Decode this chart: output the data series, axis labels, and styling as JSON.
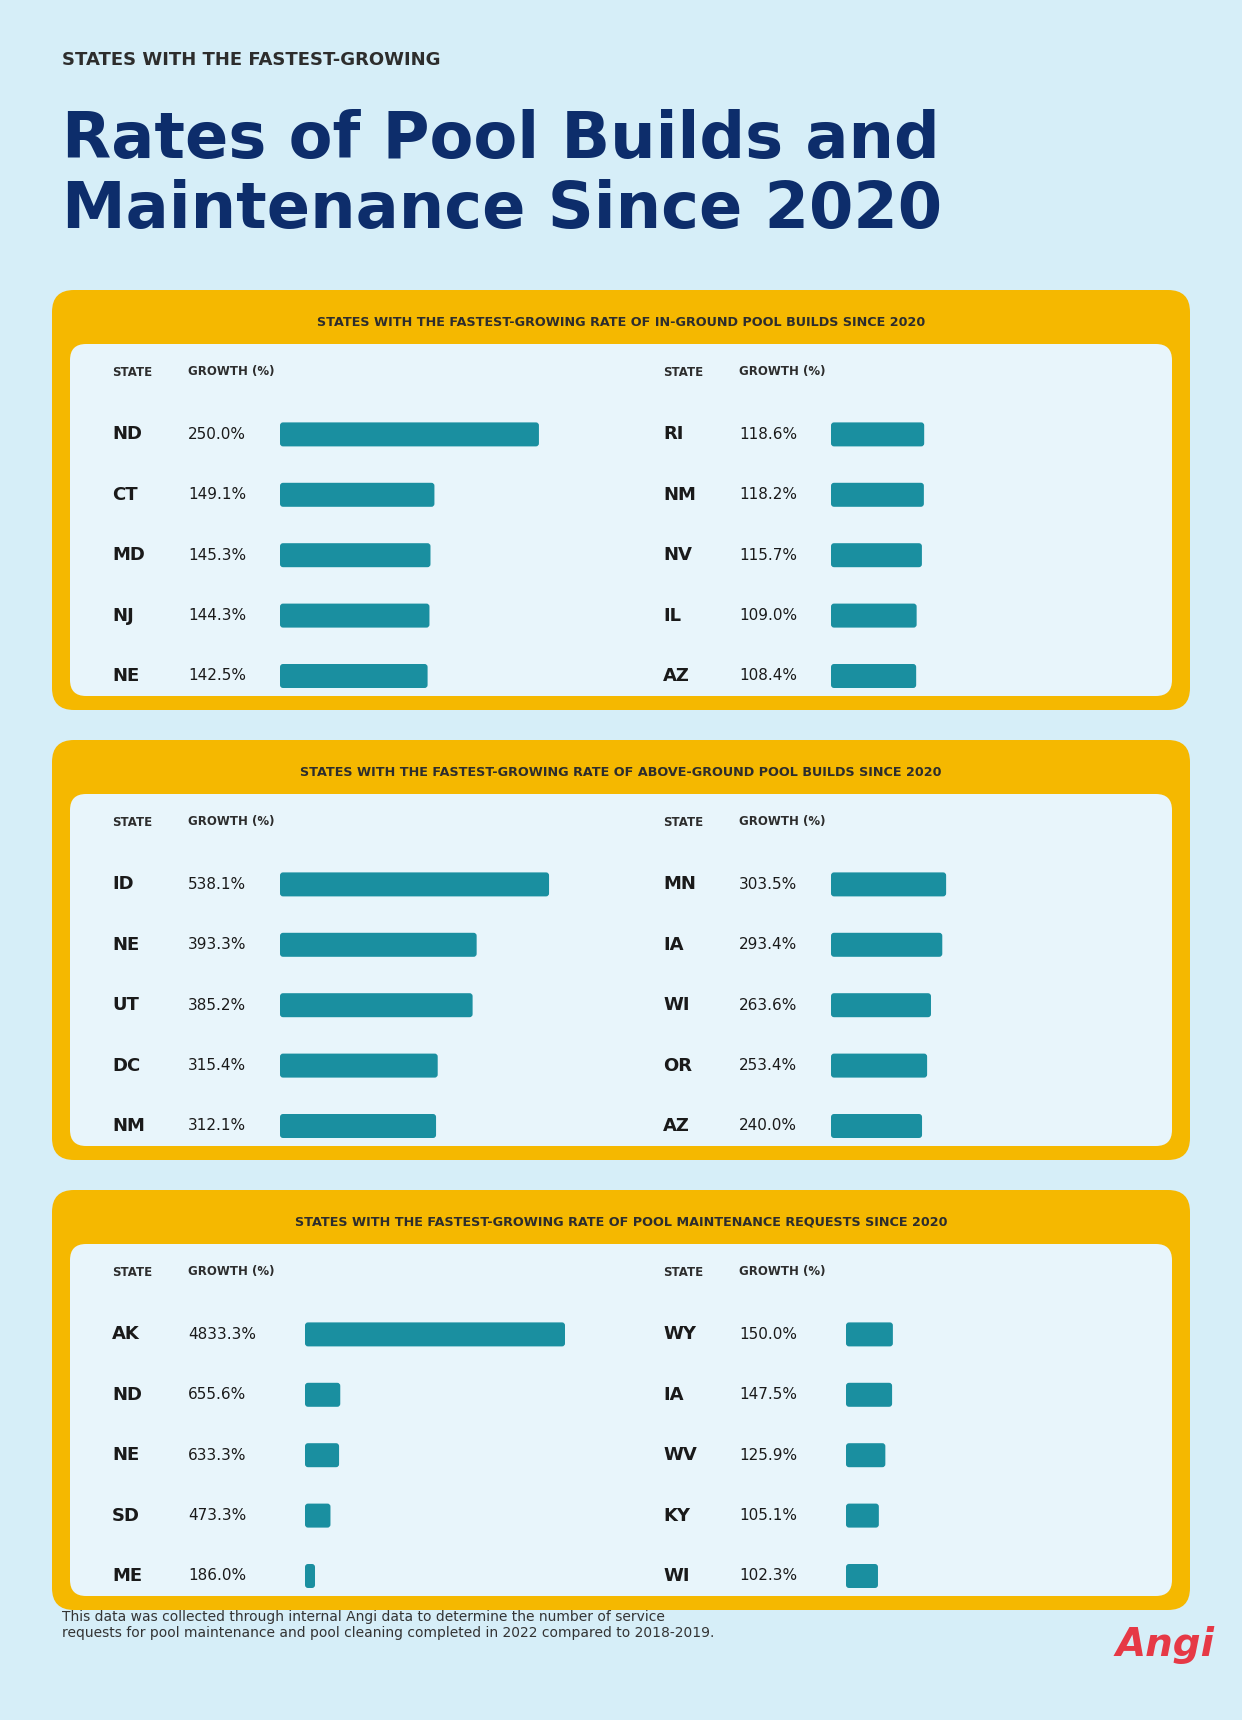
{
  "bg_color": "#d6eef8",
  "title_sub": "STATES WITH THE FASTEST-GROWING",
  "title_main": "Rates of Pool Builds and\nMaintenance Since 2020",
  "title_sub_color": "#2d2d2d",
  "title_main_color": "#0d2d6b",
  "section1_title": "STATES WITH THE FASTEST-GROWING RATE OF IN-GROUND POOL BUILDS SINCE 2020",
  "section2_title": "STATES WITH THE FASTEST-GROWING RATE OF ABOVE-GROUND POOL BUILDS SINCE 2020",
  "section3_title": "STATES WITH THE FASTEST-GROWING RATE OF POOL MAINTENANCE REQUESTS SINCE 2020",
  "section_title_color": "#2d2d2d",
  "section_bg_color": "#f5b800",
  "table_bg_color": "#e8f5fb",
  "bar_color": "#1a8fa0",
  "col_header_color": "#2d2d2d",
  "state_value_color": "#1a1a1a",
  "section1_left": [
    {
      "state": "ND",
      "value": 250.0
    },
    {
      "state": "CT",
      "value": 149.1
    },
    {
      "state": "MD",
      "value": 145.3
    },
    {
      "state": "NJ",
      "value": 144.3
    },
    {
      "state": "NE",
      "value": 142.5
    }
  ],
  "section1_right": [
    {
      "state": "RI",
      "value": 118.6
    },
    {
      "state": "NM",
      "value": 118.2
    },
    {
      "state": "NV",
      "value": 115.7
    },
    {
      "state": "IL",
      "value": 109.0
    },
    {
      "state": "AZ",
      "value": 108.4
    }
  ],
  "section2_left": [
    {
      "state": "ID",
      "value": 538.1
    },
    {
      "state": "NE",
      "value": 393.3
    },
    {
      "state": "UT",
      "value": 385.2
    },
    {
      "state": "DC",
      "value": 315.4
    },
    {
      "state": "NM",
      "value": 312.1
    }
  ],
  "section2_right": [
    {
      "state": "MN",
      "value": 303.5
    },
    {
      "state": "IA",
      "value": 293.4
    },
    {
      "state": "WI",
      "value": 263.6
    },
    {
      "state": "OR",
      "value": 253.4
    },
    {
      "state": "AZ",
      "value": 240.0
    }
  ],
  "section3_left": [
    {
      "state": "AK",
      "value": 4833.3
    },
    {
      "state": "ND",
      "value": 655.6
    },
    {
      "state": "NE",
      "value": 633.3
    },
    {
      "state": "SD",
      "value": 473.3
    },
    {
      "state": "ME",
      "value": 186.0
    }
  ],
  "section3_right": [
    {
      "state": "WY",
      "value": 150.0
    },
    {
      "state": "IA",
      "value": 147.5
    },
    {
      "state": "WV",
      "value": 125.9
    },
    {
      "state": "KY",
      "value": 105.1
    },
    {
      "state": "WI",
      "value": 102.3
    }
  ],
  "footer_text": "This data was collected through internal Angi data to determine the number of service\nrequests for pool maintenance and pool cleaning completed in 2022 compared to 2018-2019.",
  "angi_color": "#e63946"
}
